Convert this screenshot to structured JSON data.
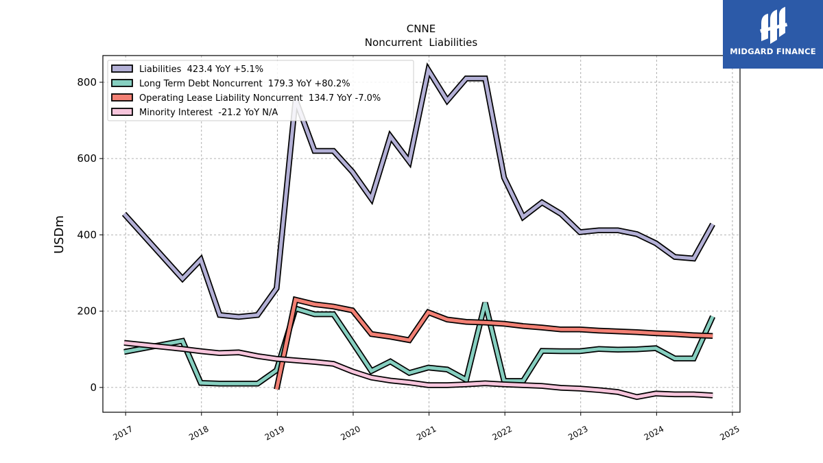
{
  "chart_data": {
    "type": "line",
    "title": "CNNE",
    "subtitle": "Noncurrent  Liabilities",
    "ylabel": "USDm",
    "xlabel": "",
    "xlim": [
      2016.7,
      2025.1
    ],
    "ylim": [
      -65,
      870
    ],
    "yticks": [
      0,
      200,
      400,
      600,
      800
    ],
    "xticks": [
      "2017",
      "2018",
      "2019",
      "2020",
      "2021",
      "2022",
      "2023",
      "2024",
      "2025"
    ],
    "grid": true,
    "legend_position": "top-left",
    "series": [
      {
        "name": "Liabilities",
        "legend": "Liabilities  423.4 YoY +5.1%",
        "color": "#b3b0d6",
        "points": [
          [
            2016.98,
            455
          ],
          [
            2017.75,
            285
          ],
          [
            2017.99,
            335
          ],
          [
            2018.24,
            190
          ],
          [
            2018.49,
            185
          ],
          [
            2018.74,
            190
          ],
          [
            2018.99,
            260
          ],
          [
            2019.24,
            755
          ],
          [
            2019.49,
            620
          ],
          [
            2019.74,
            620
          ],
          [
            2019.99,
            565
          ],
          [
            2020.24,
            495
          ],
          [
            2020.49,
            658
          ],
          [
            2020.74,
            592
          ],
          [
            2020.99,
            832
          ],
          [
            2021.24,
            752
          ],
          [
            2021.49,
            810
          ],
          [
            2021.74,
            810
          ],
          [
            2021.99,
            550
          ],
          [
            2022.24,
            447
          ],
          [
            2022.49,
            485
          ],
          [
            2022.74,
            455
          ],
          [
            2022.99,
            407
          ],
          [
            2023.24,
            412
          ],
          [
            2023.49,
            412
          ],
          [
            2023.74,
            402
          ],
          [
            2023.99,
            378
          ],
          [
            2024.24,
            342
          ],
          [
            2024.49,
            338
          ],
          [
            2024.74,
            428
          ]
        ]
      },
      {
        "name": "Long Term Debt Noncurrent",
        "legend": "Long Term Debt Noncurrent  179.3 YoY +80.2%",
        "color": "#86cfc0",
        "points": [
          [
            2016.98,
            93
          ],
          [
            2017.75,
            122
          ],
          [
            2017.99,
            12
          ],
          [
            2018.24,
            10
          ],
          [
            2018.49,
            10
          ],
          [
            2018.74,
            10
          ],
          [
            2018.99,
            45
          ],
          [
            2019.24,
            207
          ],
          [
            2019.49,
            192
          ],
          [
            2019.74,
            192
          ],
          [
            2019.99,
            118
          ],
          [
            2020.24,
            43
          ],
          [
            2020.49,
            68
          ],
          [
            2020.74,
            38
          ],
          [
            2020.99,
            52
          ],
          [
            2021.24,
            47
          ],
          [
            2021.49,
            20
          ],
          [
            2021.74,
            222
          ],
          [
            2021.99,
            17
          ],
          [
            2022.24,
            17
          ],
          [
            2022.49,
            96
          ],
          [
            2022.74,
            95
          ],
          [
            2022.99,
            95
          ],
          [
            2023.24,
            101
          ],
          [
            2023.49,
            99
          ],
          [
            2023.74,
            100
          ],
          [
            2023.99,
            103
          ],
          [
            2024.24,
            76
          ],
          [
            2024.49,
            76
          ],
          [
            2024.74,
            186
          ]
        ]
      },
      {
        "name": "Operating Lease Liability Noncurrent",
        "legend": "Operating Lease Liability Noncurrent  134.7 YoY -7.0%",
        "color": "#f28074",
        "points": [
          [
            2018.99,
            -5
          ],
          [
            2019.24,
            230
          ],
          [
            2019.49,
            218
          ],
          [
            2019.74,
            212
          ],
          [
            2019.99,
            202
          ],
          [
            2020.24,
            140
          ],
          [
            2020.49,
            133
          ],
          [
            2020.74,
            124
          ],
          [
            2020.99,
            197
          ],
          [
            2021.24,
            178
          ],
          [
            2021.49,
            172
          ],
          [
            2021.74,
            170
          ],
          [
            2021.99,
            167
          ],
          [
            2022.24,
            161
          ],
          [
            2022.49,
            157
          ],
          [
            2022.74,
            152
          ],
          [
            2022.99,
            152
          ],
          [
            2023.24,
            149
          ],
          [
            2023.49,
            147
          ],
          [
            2023.74,
            145
          ],
          [
            2023.99,
            142
          ],
          [
            2024.24,
            140
          ],
          [
            2024.49,
            137
          ],
          [
            2024.74,
            135
          ]
        ]
      },
      {
        "name": "Minority Interest",
        "legend": "Minority Interest  -21.2 YoY N/A",
        "color": "#f7c5dc",
        "points": [
          [
            2016.98,
            117
          ],
          [
            2017.75,
            101
          ],
          [
            2017.99,
            95
          ],
          [
            2018.24,
            90
          ],
          [
            2018.49,
            92
          ],
          [
            2018.74,
            82
          ],
          [
            2018.99,
            75
          ],
          [
            2019.24,
            71
          ],
          [
            2019.49,
            67
          ],
          [
            2019.74,
            62
          ],
          [
            2019.99,
            42
          ],
          [
            2020.24,
            26
          ],
          [
            2020.49,
            18
          ],
          [
            2020.74,
            13
          ],
          [
            2020.99,
            6
          ],
          [
            2021.24,
            6
          ],
          [
            2021.49,
            8
          ],
          [
            2021.74,
            11
          ],
          [
            2021.99,
            8
          ],
          [
            2022.24,
            6
          ],
          [
            2022.49,
            4
          ],
          [
            2022.74,
            -1
          ],
          [
            2022.99,
            -3
          ],
          [
            2023.24,
            -7
          ],
          [
            2023.49,
            -12
          ],
          [
            2023.74,
            -25
          ],
          [
            2023.99,
            -16
          ],
          [
            2024.24,
            -18
          ],
          [
            2024.49,
            -18
          ],
          [
            2024.74,
            -21
          ]
        ]
      }
    ]
  },
  "logo": {
    "text": "MIDGARD FINANCE",
    "background": "#2c5aa8",
    "icon": "midgard-finance-logo"
  }
}
